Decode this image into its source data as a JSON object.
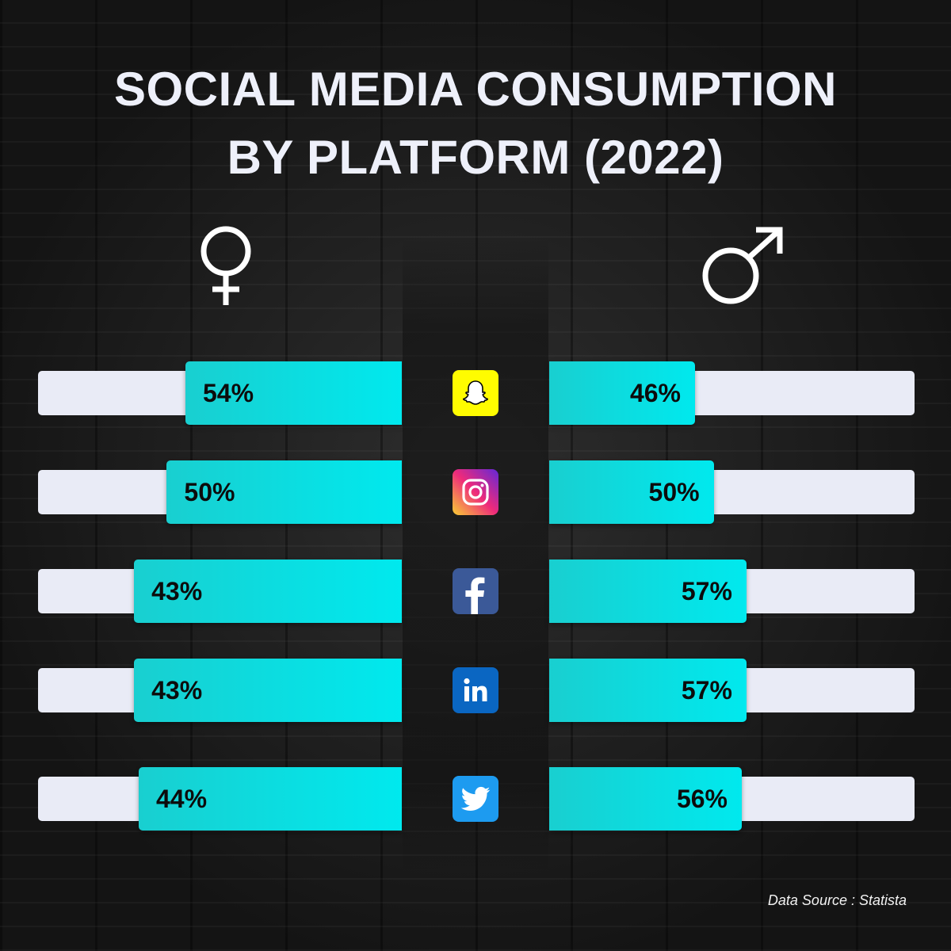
{
  "title_lines": [
    "SOCIAL MEDIA CONSUMPTION",
    "BY PLATFORM (2022)"
  ],
  "footnote": "Data Source : Statista",
  "colors": {
    "bar_fill": "#00e9ee",
    "track": "#e9ebf6",
    "title": "#eef0fa"
  },
  "icons": {
    "left_group": "female-symbol-icon",
    "right_group": "male-symbol-icon"
  },
  "chart_data": {
    "type": "bar",
    "title": "SOCIAL MEDIA CONSUMPTION BY PLATFORM (2022)",
    "categories": [
      "Snapchat",
      "Instagram",
      "Facebook",
      "LinkedIn",
      "Twitter"
    ],
    "category_icons": [
      "snapchat-icon",
      "instagram-icon",
      "facebook-icon",
      "linkedin-icon",
      "twitter-icon"
    ],
    "series": [
      {
        "values": [
          54,
          50,
          43,
          43,
          44
        ],
        "labels": [
          "54%",
          "50%",
          "43%",
          "43%",
          "44%"
        ]
      },
      {
        "values": [
          46,
          50,
          57,
          57,
          56
        ],
        "labels": [
          "46%",
          "50%",
          "57%",
          "57%",
          "56%"
        ]
      }
    ],
    "xlim": [
      0,
      100
    ],
    "grid": false
  }
}
